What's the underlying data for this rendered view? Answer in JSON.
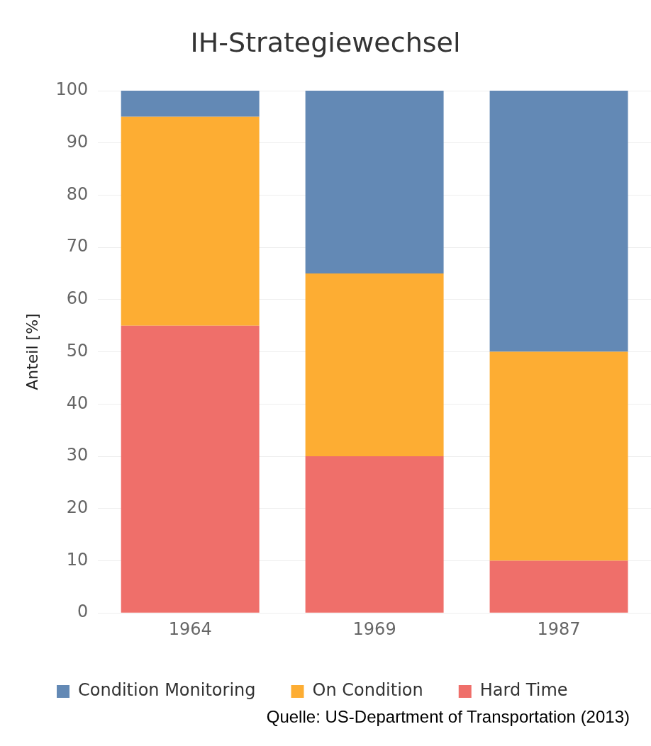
{
  "chart_data": {
    "type": "bar",
    "title": "IH-Strategiewechsel",
    "ylabel": "Anteil [%]",
    "categories": [
      "1964",
      "1969",
      "1987"
    ],
    "series": [
      {
        "name": "Hard Time",
        "color": "#ef6f6a",
        "values": [
          55,
          30,
          10
        ]
      },
      {
        "name": "On Condition",
        "color": "#fdad33",
        "values": [
          40,
          35,
          40
        ]
      },
      {
        "name": "Condition Monitoring",
        "color": "#6389b5",
        "values": [
          5,
          35,
          50
        ]
      }
    ],
    "stacked": true,
    "ylim": [
      0,
      100
    ],
    "yticks": [
      0,
      10,
      20,
      30,
      40,
      50,
      60,
      70,
      80,
      90,
      100
    ],
    "grid": "y",
    "legend": "bottom",
    "annotations": [
      "Quelle: US-Department of Transportation (2013)"
    ]
  }
}
